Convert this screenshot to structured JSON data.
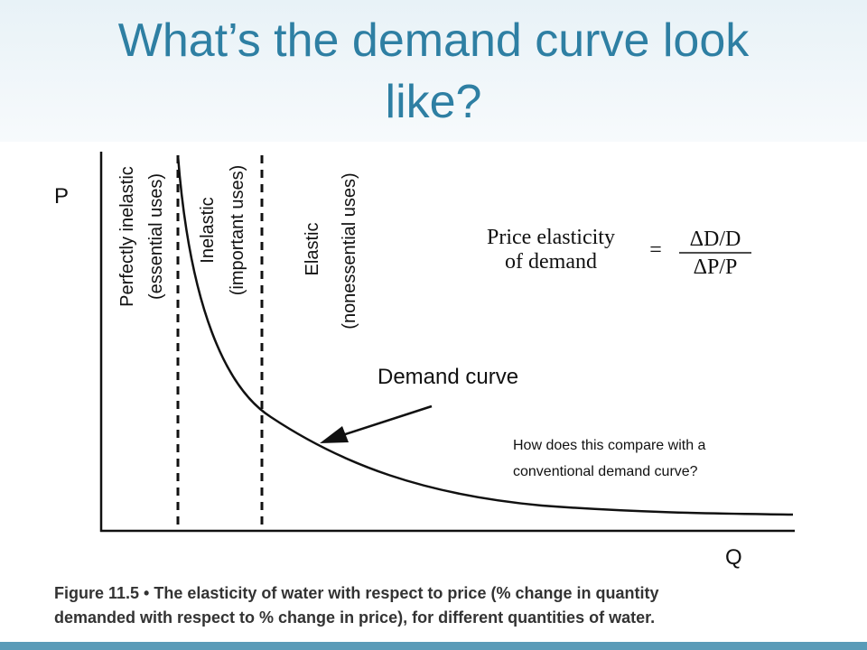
{
  "header": {
    "title_line1": "What’s the demand curve look",
    "title_line2": "like?"
  },
  "figure": {
    "axis_y": "P",
    "axis_x": "Q",
    "regions": [
      {
        "label": "Perfectly inelastic",
        "sublabel": "(essential uses)"
      },
      {
        "label": "Inelastic",
        "sublabel": "(important uses)"
      },
      {
        "label": "Elastic",
        "sublabel": "(nonessential uses)"
      }
    ],
    "formula": {
      "lhs_line1": "Price elasticity",
      "lhs_line2": "of demand",
      "equals": "=",
      "numerator": "ΔD/D",
      "denominator": "ΔP/P"
    },
    "curve_label": "Demand curve",
    "caption_line1": "Figure 11.5 • The elasticity of water with respect to price (% change in quantity",
    "caption_line2": "demanded with respect to % change in price), for different quantities of water."
  },
  "question": {
    "line1": "How does this compare with a",
    "line2": "conventional demand curve?"
  }
}
